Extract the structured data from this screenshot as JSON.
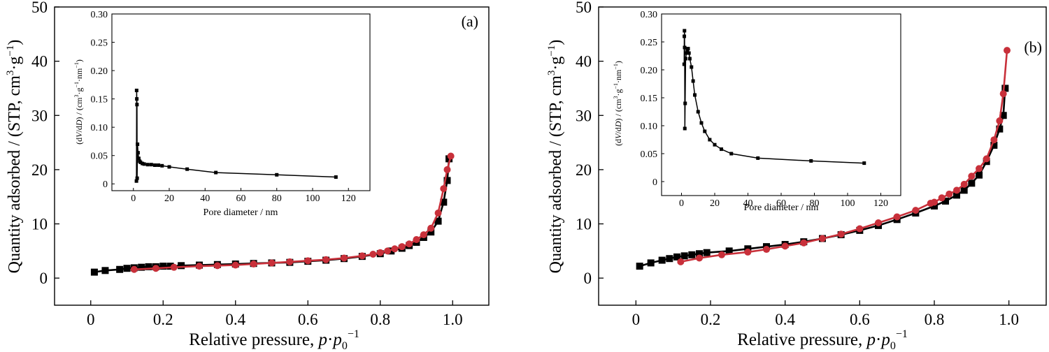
{
  "chart_data": [
    {
      "panel_label": "(a)",
      "type": "line",
      "xlabel": {
        "main": "Relative pressure, ",
        "italic_p": "p",
        "dot": "·",
        "italic_p0": "p",
        "sub0": "0",
        "sup": "−1"
      },
      "ylabel": {
        "text": "Quantity adsorbed / (STP, cm",
        "sup3": "3",
        "mid": "·g",
        "supm1": "−1",
        "end": ")"
      },
      "xlim": [
        -0.1,
        1.1
      ],
      "ylim": [
        -5,
        50
      ],
      "xticks": [
        0,
        0.2,
        0.4,
        0.6,
        0.8,
        1.0
      ],
      "xtick_labels": [
        "0",
        "0.2",
        "0.4",
        "0.6",
        "0.8",
        "1.0"
      ],
      "yticks": [
        0,
        10,
        20,
        30,
        40,
        50
      ],
      "ytick_labels": [
        "0",
        "10",
        "20",
        "30",
        "40",
        "50"
      ],
      "series": [
        {
          "marker": "square",
          "color": "#000000",
          "x": [
            0.01,
            0.04,
            0.08,
            0.1,
            0.12,
            0.14,
            0.16,
            0.18,
            0.2,
            0.22,
            0.25,
            0.3,
            0.35,
            0.4,
            0.45,
            0.5,
            0.55,
            0.6,
            0.65,
            0.7,
            0.75,
            0.8,
            0.83,
            0.86,
            0.88,
            0.9,
            0.92,
            0.94,
            0.96,
            0.975,
            0.985,
            0.99
          ],
          "y": [
            1.1,
            1.4,
            1.6,
            1.8,
            1.9,
            2.0,
            2.1,
            2.1,
            2.2,
            2.2,
            2.3,
            2.4,
            2.5,
            2.6,
            2.7,
            2.8,
            2.9,
            3.1,
            3.3,
            3.6,
            4.0,
            4.5,
            5.0,
            5.5,
            6.0,
            6.6,
            7.5,
            8.5,
            10.5,
            14.0,
            18.0,
            22.0
          ]
        },
        {
          "marker": "circle",
          "color": "#c8303a",
          "x": [
            0.12,
            0.18,
            0.23,
            0.3,
            0.35,
            0.4,
            0.45,
            0.5,
            0.55,
            0.6,
            0.65,
            0.7,
            0.75,
            0.78,
            0.8,
            0.82,
            0.84,
            0.86,
            0.88,
            0.9,
            0.92,
            0.94,
            0.96,
            0.975,
            0.985,
            0.995
          ],
          "y": [
            1.6,
            1.8,
            2.0,
            2.2,
            2.3,
            2.4,
            2.6,
            2.8,
            3.0,
            3.2,
            3.4,
            3.7,
            4.1,
            4.4,
            4.7,
            5.0,
            5.4,
            5.8,
            6.3,
            7.1,
            8.0,
            9.2,
            12.0,
            16.5,
            20.0,
            22.5
          ]
        }
      ],
      "inset": {
        "xlabel": "Pore diameter / nm",
        "ylabel": {
          "open": "(d",
          "V": "V",
          "slash": "/d",
          "D": "D",
          "mid": ") / (cm",
          "sup3": "3",
          "g": "·g",
          "supm1": "−1",
          "nm": "·nm",
          "supm1b": "−1",
          "close": ")"
        },
        "xlim": [
          -12,
          132
        ],
        "ylim": [
          -0.012,
          0.3
        ],
        "xticks": [
          0,
          20,
          40,
          60,
          80,
          100,
          120
        ],
        "xtick_labels": [
          "0",
          "20",
          "40",
          "60",
          "80",
          "100",
          "120"
        ],
        "yticks": [
          0,
          0.05,
          0.1,
          0.15,
          0.2,
          0.25,
          0.3
        ],
        "ytick_labels": [
          "0",
          "0.05",
          "0.10",
          "0.15",
          "0.20",
          "0.25",
          "0.30"
        ],
        "x": [
          1.7,
          1.8,
          1.9,
          2.0,
          2.1,
          2.3,
          2.6,
          3.0,
          3.5,
          4.0,
          5.0,
          6.0,
          8.0,
          10.0,
          12.0,
          14.0,
          16.0,
          20.0,
          30.0,
          46.0,
          80.0,
          113.0
        ],
        "y": [
          0.005,
          0.165,
          0.15,
          0.14,
          0.01,
          0.07,
          0.055,
          0.045,
          0.04,
          0.038,
          0.036,
          0.035,
          0.034,
          0.034,
          0.033,
          0.033,
          0.032,
          0.03,
          0.026,
          0.02,
          0.016,
          0.012
        ]
      }
    },
    {
      "panel_label": "(b)",
      "type": "line",
      "xlabel": {
        "main": "Relative pressure, ",
        "italic_p": "p",
        "dot": "·",
        "italic_p0": "p",
        "sub0": "0",
        "sup": "−1"
      },
      "ylabel": {
        "text": "Quantity adsorbed / (STP, cm",
        "sup3": "3",
        "mid": "·g",
        "supm1": "−1",
        "end": ")"
      },
      "xlim": [
        -0.1,
        1.1
      ],
      "ylim": [
        -5,
        50
      ],
      "xticks": [
        0,
        0.2,
        0.4,
        0.6,
        0.8,
        1.0
      ],
      "xtick_labels": [
        "0",
        "0.2",
        "0.4",
        "0.6",
        "0.8",
        "1.0"
      ],
      "yticks": [
        0,
        10,
        20,
        30,
        40,
        50
      ],
      "ytick_labels": [
        "0",
        "10",
        "20",
        "30",
        "40",
        "50"
      ],
      "series": [
        {
          "marker": "square",
          "color": "#000000",
          "x": [
            0.01,
            0.04,
            0.07,
            0.09,
            0.11,
            0.13,
            0.15,
            0.17,
            0.19,
            0.25,
            0.3,
            0.35,
            0.4,
            0.45,
            0.5,
            0.55,
            0.6,
            0.65,
            0.7,
            0.75,
            0.8,
            0.83,
            0.86,
            0.88,
            0.9,
            0.92,
            0.94,
            0.96,
            0.975,
            0.985,
            0.99
          ],
          "y": [
            2.2,
            2.8,
            3.3,
            3.6,
            3.9,
            4.1,
            4.3,
            4.5,
            4.7,
            5.0,
            5.4,
            5.8,
            6.2,
            6.7,
            7.3,
            8.0,
            8.8,
            9.7,
            10.8,
            12.0,
            13.3,
            14.2,
            15.3,
            16.2,
            17.5,
            19.0,
            21.5,
            24.5,
            27.5,
            30.0,
            35.0
          ]
        },
        {
          "marker": "circle",
          "color": "#c8303a",
          "x": [
            0.12,
            0.17,
            0.23,
            0.3,
            0.35,
            0.4,
            0.45,
            0.5,
            0.55,
            0.6,
            0.65,
            0.7,
            0.75,
            0.79,
            0.8,
            0.82,
            0.84,
            0.86,
            0.88,
            0.9,
            0.92,
            0.94,
            0.96,
            0.975,
            0.985,
            0.995
          ],
          "y": [
            3.0,
            3.7,
            4.3,
            4.8,
            5.3,
            5.9,
            6.5,
            7.3,
            8.1,
            9.1,
            10.2,
            11.3,
            12.5,
            13.8,
            14.0,
            14.8,
            15.5,
            16.2,
            17.3,
            18.8,
            20.2,
            22.0,
            25.5,
            29.0,
            34.0,
            42.0
          ]
        }
      ],
      "inset": {
        "xlabel": "Pore diameter / nm",
        "ylabel": {
          "open": "(d",
          "V": "V",
          "slash": "/d",
          "D": "D",
          "mid": ") / (cm",
          "sup3": "3",
          "g": "·g",
          "supm1": "−1",
          "nm": "·nm",
          "supm1b": "−1",
          "close": ")"
        },
        "xlim": [
          -12,
          132
        ],
        "ylim": [
          -0.025,
          0.3
        ],
        "xticks": [
          0,
          20,
          40,
          60,
          80,
          100,
          120
        ],
        "xtick_labels": [
          "0",
          "20",
          "40",
          "60",
          "80",
          "100",
          "120"
        ],
        "yticks": [
          0,
          0.05,
          0.1,
          0.15,
          0.2,
          0.25,
          0.3
        ],
        "ytick_labels": [
          "0",
          "0.05",
          "0.10",
          "0.15",
          "0.20",
          "0.25",
          "0.30"
        ],
        "x": [
          1.6,
          1.7,
          1.8,
          1.9,
          2.0,
          2.2,
          2.5,
          3.0,
          3.5,
          4.0,
          4.5,
          5.0,
          6.0,
          7.0,
          8.0,
          10.0,
          12.0,
          14.0,
          17.0,
          20.0,
          24.0,
          30.0,
          46.0,
          78.0,
          110.0
        ],
        "y": [
          0.21,
          0.26,
          0.27,
          0.24,
          0.095,
          0.14,
          0.22,
          0.23,
          0.235,
          0.238,
          0.23,
          0.22,
          0.205,
          0.18,
          0.155,
          0.125,
          0.105,
          0.09,
          0.075,
          0.066,
          0.058,
          0.05,
          0.042,
          0.037,
          0.033
        ]
      }
    }
  ]
}
